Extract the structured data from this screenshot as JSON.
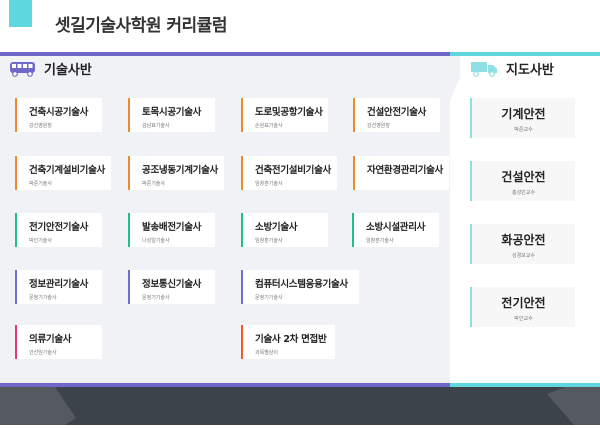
{
  "header": {
    "title": "셋길기술사학원 커리큘럼"
  },
  "colors": {
    "teal": "#5fd7df",
    "purple": "#7068c8",
    "orange": "#f08a2c",
    "green": "#1fbf8a",
    "violet": "#6f6fcf",
    "pink": "#e8357a",
    "red": "#f05a28",
    "footer": "#3c434a"
  },
  "tech": {
    "label": "기술사반",
    "icon": "bus-icon",
    "cards": [
      {
        "name": "건축시공기술사",
        "teacher": "강선영원장"
      },
      {
        "name": "토목시공기술사",
        "teacher": "김남효기술사"
      },
      {
        "name": "도로및공항기술사",
        "teacher": "손원표기술사"
      },
      {
        "name": "건설안전기술사",
        "teacher": "강선영원장"
      },
      {
        "name": "건축기계설비기술사",
        "teacher": "박준기술사"
      },
      {
        "name": "공조냉동기계기술사",
        "teacher": "박준기술사"
      },
      {
        "name": "건축전기설비기술사",
        "teacher": "임창훈기술사"
      },
      {
        "name": "자연환경관리기술사",
        "teacher": ""
      },
      {
        "name": "전기안전기술사",
        "teacher": "박인기술사"
      },
      {
        "name": "발송배전기술사",
        "teacher": "나성일기술사"
      },
      {
        "name": "소방기술사",
        "teacher": "임창훈기술사"
      },
      {
        "name": "소방시설관리사",
        "teacher": "임창훈기술사"
      },
      {
        "name": "정보관리기술사",
        "teacher": "문정기기술사"
      },
      {
        "name": "정보통신기술사",
        "teacher": "문정기기술사"
      },
      {
        "name": "컴퓨터시스템응용기술사",
        "teacher": "문정기기술사"
      },
      {
        "name": "의류기술사",
        "teacher": "안선임기술사"
      },
      {
        "name": "기술사 2차 면접반",
        "teacher": "과목별상이"
      }
    ]
  },
  "guide": {
    "label": "지도사반",
    "icon": "truck-icon",
    "cards": [
      {
        "name": "기계안전",
        "teacher": "박준교수"
      },
      {
        "name": "건설안전",
        "teacher": "홍성민교수"
      },
      {
        "name": "화공안전",
        "teacher": "성경모교수"
      },
      {
        "name": "전기안전",
        "teacher": "박인교수"
      }
    ]
  }
}
